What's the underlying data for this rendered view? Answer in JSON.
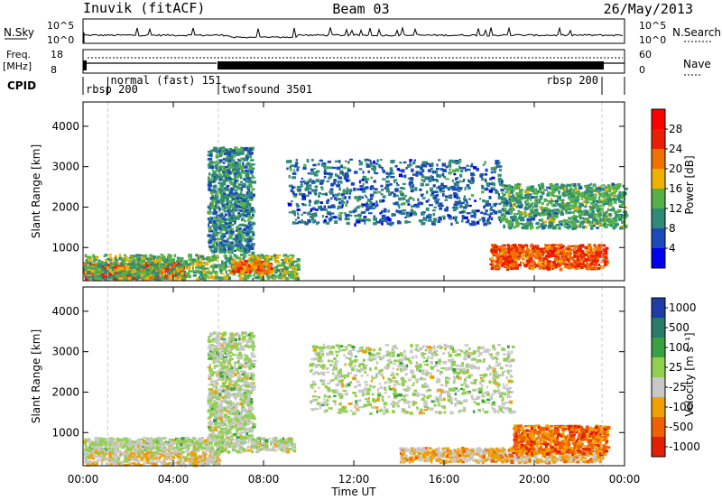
{
  "header": {
    "station": "Inuvik (fitACF)",
    "beam": "Beam 03",
    "date": "26/May/2013"
  },
  "top_panels": {
    "nsky_label": "N.Sky",
    "nsky_ticks": [
      "10^5",
      "10^0"
    ],
    "nsearch_label": "N.Search",
    "nsearch_ticks": [
      "10^5",
      "10^0"
    ],
    "freq_label": "Freq.",
    "freq_unit": "[MHz]",
    "freq_ticks": [
      "18",
      "8"
    ],
    "nave_label": "Nave",
    "nave_ticks": [
      "60",
      "0"
    ],
    "cpid_label": "CPID",
    "modes": [
      {
        "label": "rbsp 200",
        "start_h": 0.0,
        "end_h": 1.1
      },
      {
        "label": "normal (fast) 151",
        "start_h": 1.1,
        "end_h": 6.0
      },
      {
        "label": "twofsound 3501",
        "start_h": 6.0,
        "end_h": 23.0
      },
      {
        "label": "rbsp 200",
        "start_h": 23.0,
        "end_h": 24.0
      }
    ]
  },
  "x_axis": {
    "label": "Time UT",
    "ticks": [
      "00:00",
      "04:00",
      "08:00",
      "12:00",
      "16:00",
      "20:00",
      "00:00"
    ]
  },
  "power_panel": {
    "ylabel": "Slant Range [km]",
    "yticks": [
      "1000",
      "2000",
      "3000",
      "4000"
    ],
    "colorbar_label": "Power [dB]",
    "colorbar_ticks": [
      "4",
      "8",
      "12",
      "16",
      "20",
      "24",
      "28"
    ],
    "colors": [
      "#0000ee",
      "#1a4ab8",
      "#2f8a78",
      "#55b048",
      "#f0b000",
      "#f07000",
      "#e82000",
      "#ff0000"
    ]
  },
  "velocity_panel": {
    "ylabel": "Slant Range [km]",
    "yticks": [
      "1000",
      "2000",
      "3000",
      "4000"
    ],
    "colorbar_label": "Velocity [m s⁻¹]",
    "colorbar_ticks": [
      "1000",
      "500",
      "100",
      "25",
      "-25",
      "-100",
      "-500",
      "-1000"
    ],
    "colors": [
      "#1c3ca8",
      "#2a7a6a",
      "#3aa040",
      "#90cf50",
      "#c8c8c8",
      "#f0a000",
      "#f06000",
      "#e02000"
    ]
  },
  "chart_data": [
    {
      "type": "heatmap",
      "title": "Power",
      "xlabel": "Time UT",
      "ylabel": "Slant Range [km]",
      "xlim": [
        0,
        24
      ],
      "ylim": [
        180,
        4600
      ],
      "clabel": "Power [dB]",
      "clim": [
        0,
        32
      ],
      "regions": [
        {
          "t0": 0.0,
          "t1": 4.5,
          "r0": 250,
          "r1": 650,
          "value": 26
        },
        {
          "t0": 0.0,
          "t1": 9.5,
          "r0": 250,
          "r1": 850,
          "value": 14
        },
        {
          "t0": 6.5,
          "t1": 8.3,
          "r0": 400,
          "r1": 700,
          "value": 22
        },
        {
          "t0": 5.5,
          "t1": 7.5,
          "r0": 900,
          "r1": 3500,
          "value": 10
        },
        {
          "t0": 9.0,
          "t1": 18.5,
          "r0": 1600,
          "r1": 3200,
          "value": 8
        },
        {
          "t0": 18.0,
          "t1": 23.2,
          "r0": 500,
          "r1": 1100,
          "value": 24
        },
        {
          "t0": 18.5,
          "t1": 24.0,
          "r0": 1500,
          "r1": 2600,
          "value": 12
        }
      ]
    },
    {
      "type": "heatmap",
      "title": "Velocity",
      "xlabel": "Time UT",
      "ylabel": "Slant Range [km]",
      "xlim": [
        0,
        24
      ],
      "ylim": [
        180,
        4600
      ],
      "clabel": "Velocity [m s⁻¹]",
      "clim": [
        -1000,
        1000
      ],
      "regions": [
        {
          "t0": 0.0,
          "t1": 9.3,
          "r0": 550,
          "r1": 900,
          "value": 0
        },
        {
          "t0": 0.0,
          "t1": 6.0,
          "r0": 220,
          "r1": 550,
          "value": -200
        },
        {
          "t0": 5.5,
          "t1": 7.5,
          "r0": 900,
          "r1": 3500,
          "value": 0
        },
        {
          "t0": 10.0,
          "t1": 19.0,
          "r0": 1500,
          "r1": 3200,
          "value": 0
        },
        {
          "t0": 14.0,
          "t1": 23.0,
          "r0": 300,
          "r1": 650,
          "value": -300
        },
        {
          "t0": 19.0,
          "t1": 23.2,
          "r0": 500,
          "r1": 1200,
          "value": -600
        }
      ]
    }
  ]
}
